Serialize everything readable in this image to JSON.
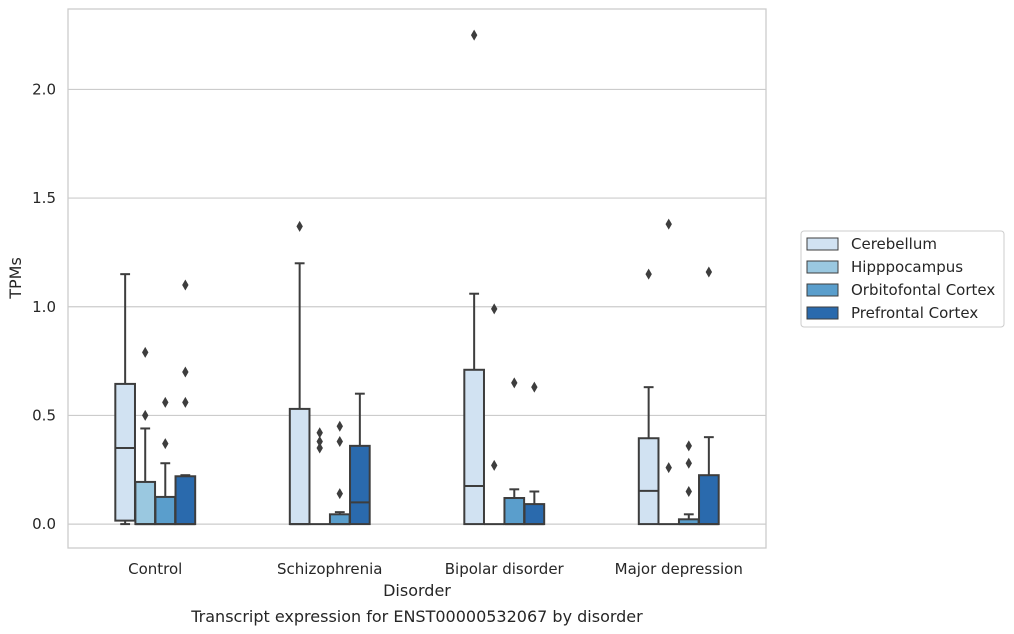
{
  "chart_data": {
    "type": "boxplot",
    "title": "",
    "caption": "Transcript expression for ENST00000532067 by disorder",
    "xlabel": "Disorder",
    "ylabel": "TPMs",
    "ylim": [
      -0.11,
      2.37
    ],
    "yticks": [
      0.0,
      0.5,
      1.0,
      1.5,
      2.0
    ],
    "ytick_labels": [
      "0.0",
      "0.5",
      "1.0",
      "1.5",
      "2.0"
    ],
    "grid": "horizontal",
    "legend_position": "right",
    "categories": [
      "Control",
      "Schizophrenia",
      "Bipolar disorder",
      "Major depression"
    ],
    "series": [
      {
        "name": "Cerebellum",
        "color": "#d1e2f2",
        "boxes": [
          {
            "whislo": 0.0,
            "q1": 0.016,
            "med": 0.35,
            "q3": 0.645,
            "whishi": 1.15,
            "fliers": []
          },
          {
            "whislo": 0.0,
            "q1": 0.0,
            "med": 0.0,
            "q3": 0.53,
            "whishi": 1.2,
            "fliers": [
              1.37
            ]
          },
          {
            "whislo": 0.0,
            "q1": 0.0,
            "med": 0.175,
            "q3": 0.71,
            "whishi": 1.06,
            "fliers": [
              2.25
            ]
          },
          {
            "whislo": 0.0,
            "q1": 0.0,
            "med": 0.153,
            "q3": 0.395,
            "whishi": 0.63,
            "fliers": [
              1.15
            ]
          }
        ]
      },
      {
        "name": "Hipppocampus",
        "color": "#9ac8e0",
        "boxes": [
          {
            "whislo": 0.0,
            "q1": 0.0,
            "med": 0.0,
            "q3": 0.194,
            "whishi": 0.44,
            "fliers": [
              0.5,
              0.79
            ]
          },
          {
            "whislo": 0.0,
            "q1": 0.0,
            "med": 0.0,
            "q3": 0.0,
            "whishi": 0.0,
            "fliers": [
              0.35,
              0.38,
              0.42
            ]
          },
          {
            "whislo": 0.0,
            "q1": 0.0,
            "med": 0.0,
            "q3": 0.0,
            "whishi": 0.0,
            "fliers": [
              0.27,
              0.99
            ]
          },
          {
            "whislo": 0.0,
            "q1": 0.0,
            "med": 0.0,
            "q3": 0.0,
            "whishi": 0.0,
            "fliers": [
              0.26,
              1.38
            ]
          }
        ]
      },
      {
        "name": "Orbitofontal Cortex",
        "color": "#5a9ecc",
        "boxes": [
          {
            "whislo": 0.0,
            "q1": 0.0,
            "med": 0.0,
            "q3": 0.125,
            "whishi": 0.28,
            "fliers": [
              0.37,
              0.56
            ]
          },
          {
            "whislo": 0.0,
            "q1": 0.0,
            "med": 0.0,
            "q3": 0.045,
            "whishi": 0.055,
            "fliers": [
              0.14,
              0.38,
              0.45
            ]
          },
          {
            "whislo": 0.0,
            "q1": 0.0,
            "med": 0.0,
            "q3": 0.12,
            "whishi": 0.16,
            "fliers": [
              0.65
            ]
          },
          {
            "whislo": 0.0,
            "q1": 0.0,
            "med": 0.0,
            "q3": 0.022,
            "whishi": 0.045,
            "fliers": [
              0.15,
              0.28,
              0.36
            ]
          }
        ]
      },
      {
        "name": "Prefrontal Cortex",
        "color": "#2a6aad",
        "boxes": [
          {
            "whislo": 0.0,
            "q1": 0.0,
            "med": 0.0,
            "q3": 0.22,
            "whishi": 0.225,
            "fliers": [
              0.56,
              0.7,
              1.1
            ]
          },
          {
            "whislo": 0.0,
            "q1": 0.0,
            "med": 0.1,
            "q3": 0.36,
            "whishi": 0.6,
            "fliers": []
          },
          {
            "whislo": 0.0,
            "q1": 0.0,
            "med": 0.0,
            "q3": 0.092,
            "whishi": 0.15,
            "fliers": [
              0.63
            ]
          },
          {
            "whislo": 0.0,
            "q1": 0.0,
            "med": 0.0,
            "q3": 0.225,
            "whishi": 0.4,
            "fliers": [
              1.16
            ]
          }
        ]
      }
    ]
  }
}
